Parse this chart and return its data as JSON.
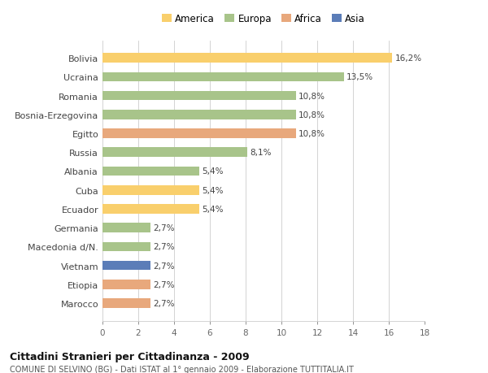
{
  "countries": [
    "Bolivia",
    "Ucraina",
    "Romania",
    "Bosnia-Erzegovina",
    "Egitto",
    "Russia",
    "Albania",
    "Cuba",
    "Ecuador",
    "Germania",
    "Macedonia d/N.",
    "Vietnam",
    "Etiopia",
    "Marocco"
  ],
  "values": [
    16.2,
    13.5,
    10.8,
    10.8,
    10.8,
    8.1,
    5.4,
    5.4,
    5.4,
    2.7,
    2.7,
    2.7,
    2.7,
    2.7
  ],
  "labels": [
    "16,2%",
    "13,5%",
    "10,8%",
    "10,8%",
    "10,8%",
    "8,1%",
    "5,4%",
    "5,4%",
    "5,4%",
    "2,7%",
    "2,7%",
    "2,7%",
    "2,7%",
    "2,7%"
  ],
  "continents": [
    "America",
    "Europa",
    "Europa",
    "Europa",
    "Africa",
    "Europa",
    "Europa",
    "America",
    "America",
    "Europa",
    "Europa",
    "Asia",
    "Africa",
    "Africa"
  ],
  "colors": {
    "America": "#F9CF6C",
    "Europa": "#A8C48A",
    "Africa": "#E8A87C",
    "Asia": "#5B7DB8"
  },
  "legend_order": [
    "America",
    "Europa",
    "Africa",
    "Asia"
  ],
  "xlim": [
    0,
    18
  ],
  "xticks": [
    0,
    2,
    4,
    6,
    8,
    10,
    12,
    14,
    16,
    18
  ],
  "title": "Cittadini Stranieri per Cittadinanza - 2009",
  "subtitle": "COMUNE DI SELVINO (BG) - Dati ISTAT al 1° gennaio 2009 - Elaborazione TUTTITALIA.IT",
  "bg_color": "#FFFFFF",
  "grid_color": "#CCCCCC",
  "bar_height": 0.5
}
